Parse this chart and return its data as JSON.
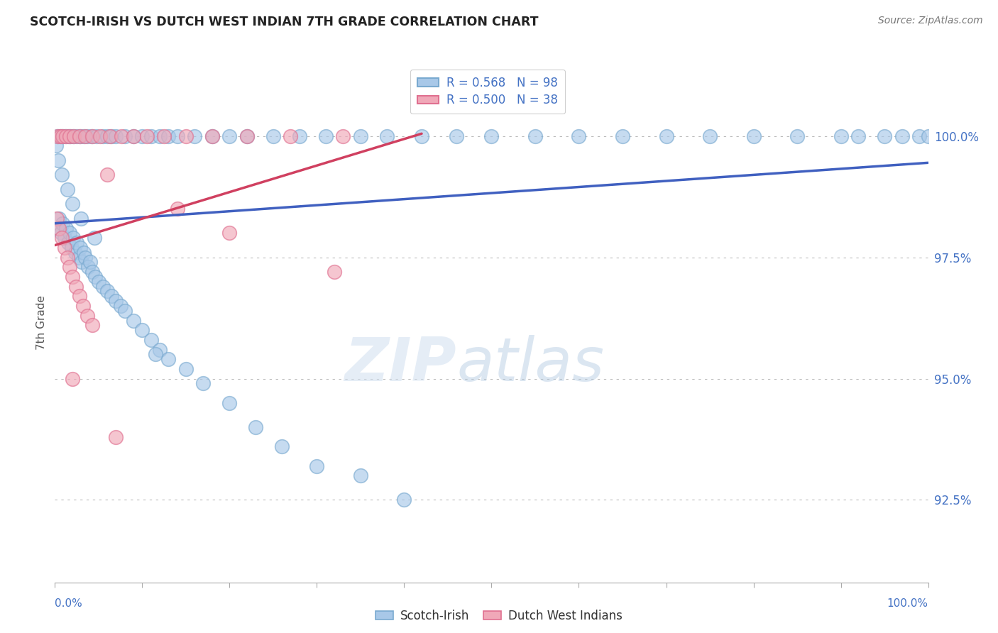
{
  "title": "SCOTCH-IRISH VS DUTCH WEST INDIAN 7TH GRADE CORRELATION CHART",
  "source": "Source: ZipAtlas.com",
  "ylabel": "7th Grade",
  "ytick_vals": [
    92.5,
    95.0,
    97.5,
    100.0
  ],
  "ytick_labels": [
    "92.5%",
    "95.0%",
    "97.5%",
    "100.0%"
  ],
  "xlim": [
    0.0,
    1.0
  ],
  "ylim": [
    90.8,
    101.5
  ],
  "blue_color": "#a8c8e8",
  "pink_color": "#f0a8b8",
  "blue_edge_color": "#7aaad0",
  "pink_edge_color": "#e07090",
  "blue_line_color": "#4060c0",
  "pink_line_color": "#d04060",
  "legend_blue_r": "R = 0.568",
  "legend_blue_n": "N = 98",
  "legend_pink_r": "R = 0.500",
  "legend_pink_n": "N = 38",
  "watermark_text": "ZIPatlas",
  "blue_line_x0": 0.0,
  "blue_line_y0": 98.2,
  "blue_line_x1": 1.0,
  "blue_line_y1": 99.45,
  "pink_line_x0": 0.0,
  "pink_line_y0": 97.75,
  "pink_line_x1": 0.42,
  "pink_line_y1": 100.05,
  "blue_x": [
    0.003,
    0.005,
    0.007,
    0.009,
    0.011,
    0.013,
    0.015,
    0.017,
    0.019,
    0.021,
    0.023,
    0.025,
    0.027,
    0.029,
    0.031,
    0.033,
    0.035,
    0.038,
    0.04,
    0.043,
    0.046,
    0.05,
    0.055,
    0.06,
    0.065,
    0.07,
    0.075,
    0.08,
    0.09,
    0.1,
    0.11,
    0.12,
    0.13,
    0.15,
    0.17,
    0.2,
    0.23,
    0.26,
    0.3,
    0.35,
    0.4,
    0.003,
    0.006,
    0.009,
    0.012,
    0.015,
    0.018,
    0.021,
    0.025,
    0.029,
    0.033,
    0.037,
    0.042,
    0.048,
    0.055,
    0.06,
    0.065,
    0.07,
    0.08,
    0.09,
    0.1,
    0.11,
    0.12,
    0.13,
    0.14,
    0.16,
    0.18,
    0.2,
    0.22,
    0.25,
    0.28,
    0.31,
    0.35,
    0.38,
    0.42,
    0.46,
    0.5,
    0.55,
    0.6,
    0.65,
    0.7,
    0.75,
    0.8,
    0.85,
    0.9,
    0.92,
    0.95,
    0.97,
    0.99,
    1.0,
    0.001,
    0.004,
    0.008,
    0.014,
    0.02,
    0.03,
    0.045,
    0.115
  ],
  "blue_y": [
    98.1,
    98.3,
    98.0,
    98.2,
    97.9,
    98.1,
    97.8,
    98.0,
    97.7,
    97.9,
    97.6,
    97.8,
    97.5,
    97.7,
    97.4,
    97.6,
    97.5,
    97.3,
    97.4,
    97.2,
    97.1,
    97.0,
    96.9,
    96.8,
    96.7,
    96.6,
    96.5,
    96.4,
    96.2,
    96.0,
    95.8,
    95.6,
    95.4,
    95.2,
    94.9,
    94.5,
    94.0,
    93.6,
    93.2,
    93.0,
    92.5,
    100.0,
    100.0,
    100.0,
    100.0,
    100.0,
    100.0,
    100.0,
    100.0,
    100.0,
    100.0,
    100.0,
    100.0,
    100.0,
    100.0,
    100.0,
    100.0,
    100.0,
    100.0,
    100.0,
    100.0,
    100.0,
    100.0,
    100.0,
    100.0,
    100.0,
    100.0,
    100.0,
    100.0,
    100.0,
    100.0,
    100.0,
    100.0,
    100.0,
    100.0,
    100.0,
    100.0,
    100.0,
    100.0,
    100.0,
    100.0,
    100.0,
    100.0,
    100.0,
    100.0,
    100.0,
    100.0,
    100.0,
    100.0,
    100.0,
    99.8,
    99.5,
    99.2,
    98.9,
    98.6,
    98.3,
    97.9,
    95.5
  ],
  "pink_x": [
    0.002,
    0.005,
    0.008,
    0.011,
    0.014,
    0.017,
    0.02,
    0.024,
    0.028,
    0.032,
    0.037,
    0.043,
    0.003,
    0.006,
    0.009,
    0.013,
    0.017,
    0.022,
    0.028,
    0.035,
    0.043,
    0.052,
    0.063,
    0.076,
    0.09,
    0.105,
    0.125,
    0.15,
    0.18,
    0.22,
    0.27,
    0.33,
    0.06,
    0.14,
    0.2,
    0.32,
    0.02,
    0.07
  ],
  "pink_y": [
    98.3,
    98.1,
    97.9,
    97.7,
    97.5,
    97.3,
    97.1,
    96.9,
    96.7,
    96.5,
    96.3,
    96.1,
    100.0,
    100.0,
    100.0,
    100.0,
    100.0,
    100.0,
    100.0,
    100.0,
    100.0,
    100.0,
    100.0,
    100.0,
    100.0,
    100.0,
    100.0,
    100.0,
    100.0,
    100.0,
    100.0,
    100.0,
    99.2,
    98.5,
    98.0,
    97.2,
    95.0,
    93.8
  ]
}
